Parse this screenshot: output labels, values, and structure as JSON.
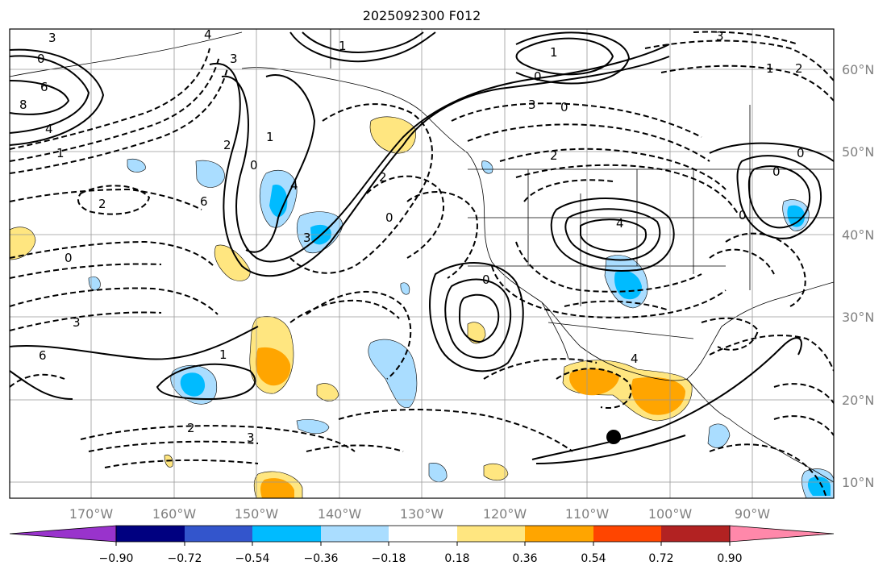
{
  "title": "2025092300 F012",
  "axes": {
    "lon_labels": [
      "170°W",
      "160°W",
      "150°W",
      "140°W",
      "130°W",
      "120°W",
      "110°W",
      "100°W",
      "90°W"
    ],
    "lat_labels": [
      "60°N",
      "50°N",
      "40°N",
      "30°N",
      "20°N",
      "10°N"
    ]
  },
  "colorbar": {
    "colors": [
      "#9933cc",
      "#000080",
      "#3355cc",
      "#00bbff",
      "#aaddff",
      "#ffffff",
      "#ffe680",
      "#ffa500",
      "#ff4500",
      "#b22222",
      "#ff88aa"
    ],
    "tick_labels": [
      "−0.90",
      "−0.72",
      "−0.54",
      "−0.36",
      "−0.18",
      "0.18",
      "0.36",
      "0.54",
      "0.72",
      "0.90"
    ]
  },
  "contour_labels": [
    "3",
    "0",
    "6",
    "8",
    "4",
    "1",
    "2",
    "0",
    "3",
    "6",
    "4",
    "3",
    "2",
    "0",
    "1",
    "4",
    "6",
    "3",
    "1",
    "1",
    "2",
    "0",
    "1",
    "0",
    "3",
    "0",
    "2",
    "0",
    "4",
    "3",
    "1",
    "2",
    "0",
    "0",
    "0",
    "2",
    "3",
    "4"
  ],
  "marker": {
    "name": "storm-center-marker"
  }
}
